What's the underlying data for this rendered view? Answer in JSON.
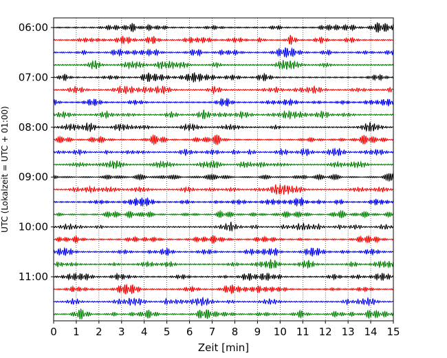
{
  "chart_data": {
    "type": "line",
    "title": "",
    "xlabel": "Zeit  [min]",
    "ylabel": "UTC (Lokalzeit = UTC + 01:00)",
    "xlim": [
      0,
      15
    ],
    "x_ticks": [
      "0",
      "1",
      "2",
      "3",
      "4",
      "5",
      "6",
      "7",
      "8",
      "9",
      "10",
      "11",
      "12",
      "13",
      "14",
      "15"
    ],
    "y_ticks": [
      "06:00",
      "07:00",
      "08:00",
      "09:00",
      "10:00",
      "11:00"
    ],
    "grid": "vertical dotted",
    "trace_colors": [
      "#000000",
      "#ff0000",
      "#0000ff",
      "#008000"
    ],
    "traces": [
      {
        "start": "06:00",
        "color": "#000000",
        "bursts": [
          [
            14.3,
            1.0
          ]
        ]
      },
      {
        "start": "06:15",
        "color": "#ff0000",
        "bursts": [
          [
            11.8,
            0.6
          ],
          [
            13.1,
            0.5
          ]
        ]
      },
      {
        "start": "06:30",
        "color": "#0000ff",
        "bursts": [
          [
            2.8,
            0.7
          ],
          [
            6.2,
            0.6
          ]
        ]
      },
      {
        "start": "06:45",
        "color": "#008000",
        "bursts": [
          [
            10.1,
            0.9
          ]
        ]
      },
      {
        "start": "07:00",
        "color": "#000000",
        "bursts": [
          [
            6.2,
            0.5
          ]
        ]
      },
      {
        "start": "07:15",
        "color": "#ff0000",
        "bursts": [
          [
            0.9,
            0.6
          ],
          [
            7.1,
            0.5
          ],
          [
            15.0,
            0.6
          ]
        ]
      },
      {
        "start": "07:30",
        "color": "#0000ff",
        "bursts": [
          [
            7.6,
            0.6
          ]
        ]
      },
      {
        "start": "07:45",
        "color": "#008000",
        "bursts": [
          [
            5.2,
            0.6
          ],
          [
            8.3,
            0.5
          ],
          [
            10.3,
            0.7
          ]
        ]
      },
      {
        "start": "08:00",
        "color": "#000000",
        "bursts": [
          [
            5.9,
            0.6
          ],
          [
            14.0,
            0.8
          ]
        ]
      },
      {
        "start": "08:15",
        "color": "#ff0000",
        "bursts": [
          [
            4.4,
            0.6
          ],
          [
            13.8,
            0.5
          ]
        ]
      },
      {
        "start": "08:30",
        "color": "#0000ff",
        "bursts": [
          [
            1.1,
            0.5
          ],
          [
            10.1,
            0.6
          ],
          [
            12.6,
            0.7
          ]
        ]
      },
      {
        "start": "08:45",
        "color": "#008000",
        "bursts": [
          [
            7.1,
            0.8
          ]
        ]
      },
      {
        "start": "09:00",
        "color": "#000000",
        "bursts": [
          [
            11.8,
            0.5
          ]
        ]
      },
      {
        "start": "09:15",
        "color": "#ff0000",
        "bursts": [
          [
            1.6,
            0.6
          ]
        ]
      },
      {
        "start": "09:30",
        "color": "#0000ff",
        "bursts": [
          [
            4.0,
            0.5
          ],
          [
            10.9,
            0.5
          ]
        ]
      },
      {
        "start": "09:45",
        "color": "#008000",
        "bursts": [
          [
            2.5,
            0.5
          ],
          [
            12.6,
            0.9
          ],
          [
            14.9,
            0.5
          ]
        ]
      },
      {
        "start": "10:00",
        "color": "#000000",
        "bursts": [
          [
            0.7,
            0.4
          ],
          [
            14.6,
            0.5
          ]
        ]
      },
      {
        "start": "10:15",
        "color": "#ff0000",
        "bursts": [
          [
            3.5,
            0.5
          ],
          [
            9.1,
            0.4
          ],
          [
            13.9,
            0.5
          ]
        ]
      },
      {
        "start": "10:30",
        "color": "#0000ff",
        "bursts": [
          [
            5.0,
            0.6
          ],
          [
            9.3,
            0.5
          ]
        ]
      },
      {
        "start": "10:45",
        "color": "#008000",
        "bursts": [
          [
            5.1,
            0.5
          ],
          [
            9.6,
            0.9
          ]
        ]
      },
      {
        "start": "11:00",
        "color": "#000000",
        "bursts": [
          [
            8.5,
            0.6
          ],
          [
            12.4,
            0.5
          ]
        ]
      },
      {
        "start": "11:15",
        "color": "#ff0000",
        "bursts": [
          [
            3.3,
            0.5
          ],
          [
            7.8,
            0.6
          ]
        ]
      },
      {
        "start": "11:30",
        "color": "#0000ff",
        "bursts": [
          [
            0.9,
            0.6
          ],
          [
            2.9,
            0.5
          ],
          [
            14.0,
            0.7
          ]
        ]
      },
      {
        "start": "11:45",
        "color": "#008000",
        "bursts": [
          [
            1.2,
            0.5
          ],
          [
            4.1,
            0.5
          ],
          [
            12.5,
            0.6
          ],
          [
            14.0,
            0.8
          ]
        ]
      }
    ]
  }
}
